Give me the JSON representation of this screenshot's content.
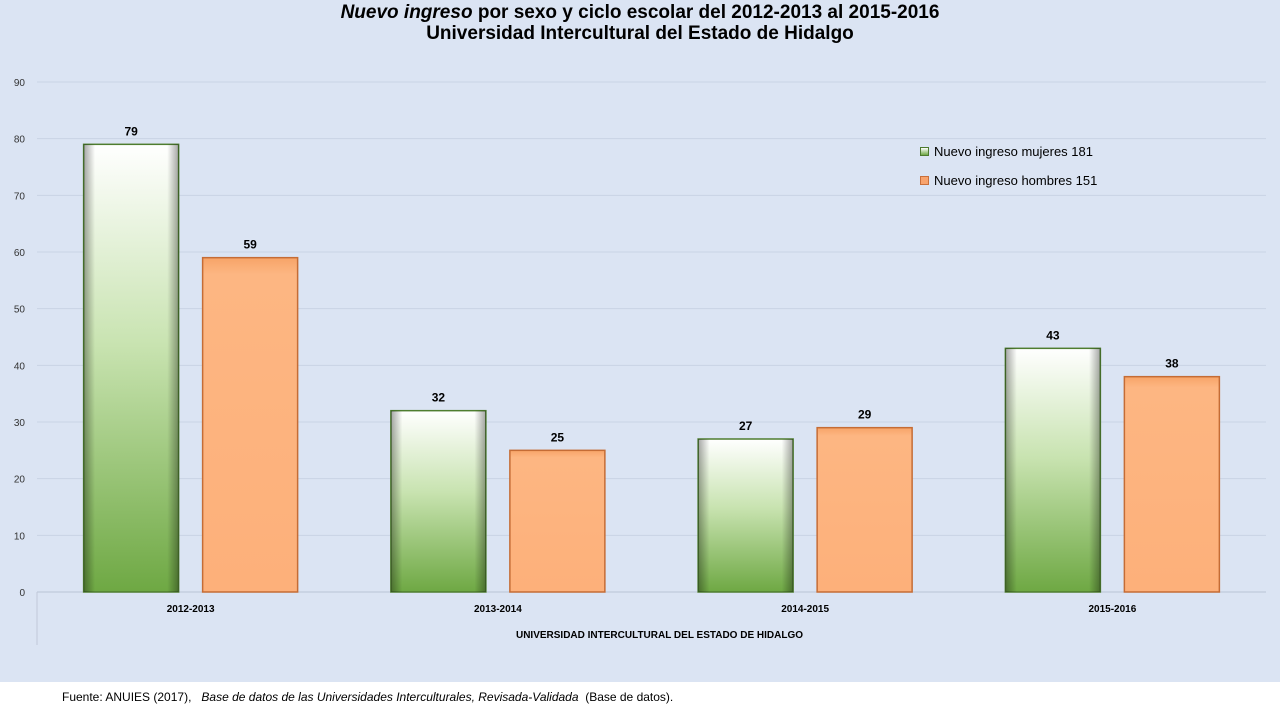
{
  "title": {
    "line1_italic": "Nuevo ingreso",
    "line1_rest": " por sexo y ciclo escolar del 2012-2013 al 2015-2016",
    "line2": "Universidad Intercultural del Estado de Hidalgo"
  },
  "chart_data": {
    "type": "bar",
    "categories": [
      "2012-2013",
      "2013-2014",
      "2014-2015",
      "2015-2016"
    ],
    "series": [
      {
        "name": "Nuevo ingreso mujeres 181",
        "values": [
          79,
          32,
          27,
          43
        ],
        "color": "#7ab648"
      },
      {
        "name": "Nuevo ingreso hombres 151",
        "values": [
          59,
          25,
          29,
          38
        ],
        "color": "#f8b07c"
      }
    ],
    "xlabel": "UNIVERSIDAD INTERCULTURAL DEL ESTADO DE HIDALGO",
    "ylabel": "",
    "ylim": [
      0,
      90
    ],
    "yticks": [
      0,
      10,
      20,
      30,
      40,
      50,
      60,
      70,
      80,
      90
    ],
    "grid": true,
    "legend_position": "top-right",
    "data_labels": true
  },
  "legend": {
    "women": "Nuevo ingreso mujeres 181",
    "men": "Nuevo ingreso hombres 151"
  },
  "source": {
    "prefix": "Fuente: ANUIES (2017),",
    "italic": "Base de datos de las Universidades  Interculturales, Revisada-Validada",
    "suffix": "(Base de datos)."
  }
}
